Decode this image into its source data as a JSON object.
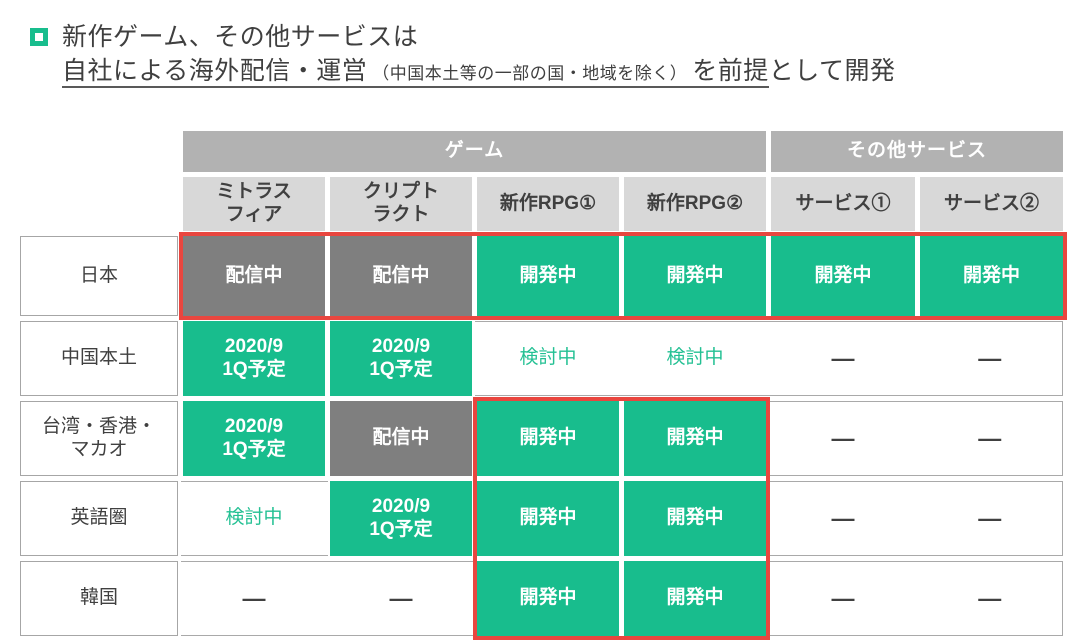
{
  "title": {
    "line1": "新作ゲーム、その他サービスは",
    "line2_main": "自社による海外配信・運営",
    "line2_note": "（中国本土等の一部の国・地域を除く）",
    "line2_tail": "を前提",
    "line2_rest": "として開発"
  },
  "colors": {
    "accent_green": "#18bd8d",
    "status_gray": "#7f7f7f",
    "group_header_bg": "#b2b2b2",
    "sub_header_bg": "#d8d8d8",
    "highlight_red": "#e9463f",
    "border_gray": "#a6a6a6",
    "text_dark": "#404040"
  },
  "table": {
    "group_headers": [
      {
        "label": "ゲーム",
        "span": 4
      },
      {
        "label": "その他サービス",
        "span": 2
      }
    ],
    "column_headers": [
      "ミトラス\nフィア",
      "クリプト\nラクト",
      "新作RPG①",
      "新作RPG②",
      "サービス①",
      "サービス②"
    ],
    "rows": [
      {
        "region": "日本",
        "cells": [
          {
            "text": "配信中",
            "variant": "gray"
          },
          {
            "text": "配信中",
            "variant": "gray"
          },
          {
            "text": "開発中",
            "variant": "green"
          },
          {
            "text": "開発中",
            "variant": "green"
          },
          {
            "text": "開発中",
            "variant": "green"
          },
          {
            "text": "開発中",
            "variant": "green"
          }
        ]
      },
      {
        "region": "中国本土",
        "cells": [
          {
            "text": "2020/9\n1Q予定",
            "variant": "green"
          },
          {
            "text": "2020/9\n1Q予定",
            "variant": "green"
          },
          {
            "text": "検討中",
            "variant": "green-text"
          },
          {
            "text": "検討中",
            "variant": "green-text"
          },
          {
            "text": "—",
            "variant": "dash"
          },
          {
            "text": "—",
            "variant": "dash"
          }
        ]
      },
      {
        "region": "台湾・香港・\nマカオ",
        "cells": [
          {
            "text": "2020/9\n1Q予定",
            "variant": "green"
          },
          {
            "text": "配信中",
            "variant": "gray"
          },
          {
            "text": "開発中",
            "variant": "green"
          },
          {
            "text": "開発中",
            "variant": "green"
          },
          {
            "text": "—",
            "variant": "dash"
          },
          {
            "text": "—",
            "variant": "dash"
          }
        ]
      },
      {
        "region": "英語圏",
        "cells": [
          {
            "text": "検討中",
            "variant": "green-text"
          },
          {
            "text": "2020/9\n1Q予定",
            "variant": "green"
          },
          {
            "text": "開発中",
            "variant": "green"
          },
          {
            "text": "開発中",
            "variant": "green"
          },
          {
            "text": "—",
            "variant": "dash"
          },
          {
            "text": "—",
            "variant": "dash"
          }
        ]
      },
      {
        "region": "韓国",
        "cells": [
          {
            "text": "—",
            "variant": "dash"
          },
          {
            "text": "—",
            "variant": "dash"
          },
          {
            "text": "開発中",
            "variant": "green"
          },
          {
            "text": "開発中",
            "variant": "green"
          },
          {
            "text": "—",
            "variant": "dash"
          },
          {
            "text": "—",
            "variant": "dash"
          }
        ]
      }
    ],
    "highlights": [
      {
        "name": "japan-row-highlight"
      },
      {
        "name": "new-rpg-overseas-highlight"
      }
    ]
  }
}
